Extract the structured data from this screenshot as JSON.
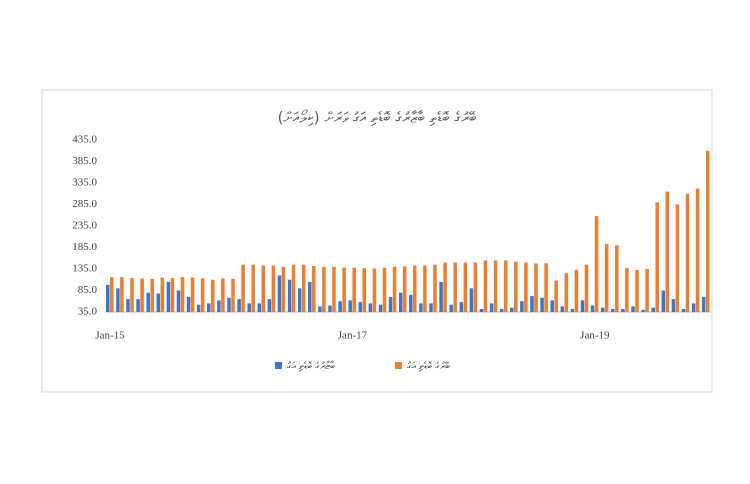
{
  "chart_data": {
    "type": "bar",
    "title": "ބޭރުގެ ބޮޑެތި ބާޒާރުގެ ބޮޑެތި އަގު ވަރަށް (ކިލޯއަށް)",
    "categories": [
      "Jan-15",
      null,
      null,
      null,
      null,
      null,
      null,
      null,
      null,
      null,
      null,
      null,
      null,
      null,
      null,
      null,
      null,
      null,
      null,
      null,
      null,
      null,
      null,
      null,
      "Jan-17",
      null,
      null,
      null,
      null,
      null,
      null,
      null,
      null,
      null,
      null,
      null,
      null,
      null,
      null,
      null,
      null,
      null,
      null,
      null,
      null,
      null,
      null,
      null,
      "Jan-19",
      null,
      null,
      null,
      null,
      null,
      null,
      null,
      null,
      null,
      null,
      null
    ],
    "series": [
      {
        "name": "ބާޒާރުގެ ބޮޑެތި އަގު",
        "color": "#4472c4",
        "values": [
          98,
          90,
          65,
          65,
          80,
          78,
          105,
          85,
          70,
          52,
          55,
          62,
          68,
          65,
          55,
          55,
          65,
          120,
          110,
          90,
          105,
          48,
          50,
          60,
          62,
          58,
          55,
          52,
          70,
          80,
          75,
          55,
          55,
          105,
          52,
          58,
          90,
          42,
          55,
          42,
          45,
          60,
          72,
          68,
          62,
          48,
          42,
          62,
          50,
          45,
          42,
          42,
          48,
          40,
          45,
          85,
          65,
          42,
          55,
          70
        ]
      },
      {
        "name": "ބޭރުގެ ބޮޑެތި އަގު",
        "color": "#ed7d31",
        "values": [
          116,
          116,
          114,
          113,
          112,
          115,
          114,
          116,
          115,
          113,
          110,
          113,
          112,
          145,
          145,
          143,
          143,
          140,
          145,
          145,
          142,
          140,
          140,
          138,
          138,
          137,
          136,
          138,
          140,
          141,
          143,
          143,
          145,
          150,
          150,
          150,
          150,
          155,
          155,
          155,
          152,
          150,
          148,
          148,
          108,
          125,
          133,
          145,
          258,
          193,
          190,
          137,
          133,
          135,
          290,
          315,
          285,
          310,
          322,
          410
        ]
      }
    ],
    "ylim": [
      35,
      435
    ],
    "yticks": [
      {
        "value": 35,
        "label": "35.0"
      },
      {
        "value": 85,
        "label": "85.0"
      },
      {
        "value": 135,
        "label": "135.0"
      },
      {
        "value": 185,
        "label": "185.0"
      },
      {
        "value": 235,
        "label": "235.0"
      },
      {
        "value": 285,
        "label": "285.0"
      },
      {
        "value": 335,
        "label": "335.0"
      },
      {
        "value": 385,
        "label": "385.0"
      },
      {
        "value": 435,
        "label": "435.0"
      }
    ],
    "grid": false,
    "legend": "bottom"
  }
}
